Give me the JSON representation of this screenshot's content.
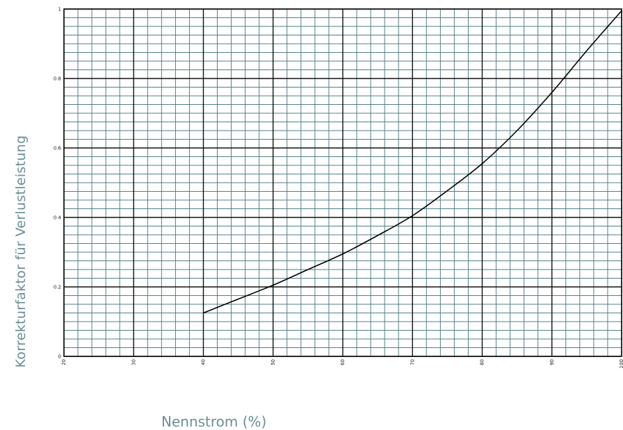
{
  "chart_data": {
    "type": "line",
    "title": "",
    "xlabel": "Nennstrom (%)",
    "ylabel": "Korrekturfaktor für Verlustleistung",
    "xlim": [
      20,
      100
    ],
    "ylim": [
      0,
      1
    ],
    "x_ticks": [
      "20",
      "30",
      "40",
      "50",
      "60",
      "70",
      "80",
      "90",
      "100"
    ],
    "y_ticks": [
      "0",
      "0.2",
      "0.4",
      "0.6",
      "0.8",
      "1"
    ],
    "grid": true,
    "legend": "none",
    "series": [
      {
        "x": [
          40,
          45,
          50,
          55,
          60,
          65,
          70,
          75,
          80,
          85,
          90,
          95,
          100
        ],
        "y": [
          0.125,
          0.165,
          0.205,
          0.25,
          0.295,
          0.348,
          0.405,
          0.477,
          0.555,
          0.65,
          0.76,
          0.88,
          0.995
        ]
      }
    ],
    "colors": {
      "major_grid": "#111111",
      "minor_grid": "#4f7f87",
      "line": "#000000",
      "label": "#6a8f96"
    }
  }
}
